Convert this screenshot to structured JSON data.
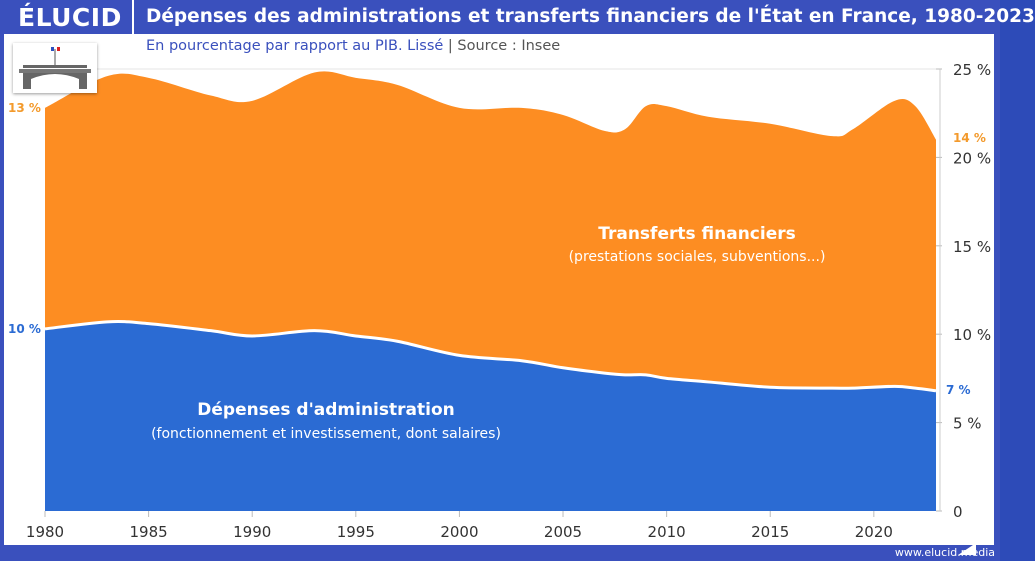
{
  "header": {
    "logo": "ÉLUCID",
    "title": "Dépenses des administrations et transferts financiers de l'État en France, 1980-2023"
  },
  "subtitle": {
    "text": "En pourcentage par rapport au PIB. Lissé",
    "sep": "|",
    "source": "Source : Insee"
  },
  "footer": {
    "url": "www.elucid.media"
  },
  "colors": {
    "frame": "#3a50bd",
    "transferts": "#fd8d22",
    "administration": "#2b6bd3",
    "start_end_transferts": "#f39a2c"
  },
  "chart_data": {
    "type": "area",
    "stacked": true,
    "x": [
      1980,
      1983,
      1985,
      1988,
      1990,
      1993,
      1995,
      1997,
      2000,
      2003,
      2005,
      2007,
      2008,
      2009,
      2010,
      2012,
      2015,
      2018,
      2019,
      2021,
      2022,
      2023
    ],
    "series": [
      {
        "name": "Dépenses d'administration",
        "sublabel": "(fonctionnement et investissement, dont salaires)",
        "color": "#2b6bd3",
        "values": [
          10.3,
          10.7,
          10.6,
          10.2,
          9.9,
          10.2,
          9.9,
          9.6,
          8.8,
          8.5,
          8.1,
          7.8,
          7.7,
          7.7,
          7.5,
          7.3,
          7.0,
          6.95,
          6.95,
          7.05,
          6.95,
          6.8
        ]
      },
      {
        "name": "Transferts financiers",
        "sublabel": "(prestations sociales, subventions...)",
        "color": "#fd8d22",
        "values": [
          12.5,
          13.9,
          13.9,
          13.3,
          13.3,
          14.6,
          14.6,
          14.5,
          14.0,
          14.3,
          14.3,
          13.7,
          13.9,
          15.2,
          15.4,
          15.0,
          14.9,
          14.25,
          14.65,
          16.15,
          15.95,
          14.2
        ]
      }
    ],
    "start_labels": {
      "transferts": "13 %",
      "administration": "10 %"
    },
    "end_labels": {
      "transferts": "14 %",
      "administration": "7 %"
    },
    "xticks": [
      1980,
      1985,
      1990,
      1995,
      2000,
      2005,
      2010,
      2015,
      2020
    ],
    "yticks": [
      0,
      5,
      10,
      15,
      20,
      25
    ],
    "ytick_labels": [
      "0",
      "5 %",
      "10 %",
      "15 %",
      "20 %",
      "25 %"
    ],
    "xlim": [
      1980,
      2023
    ],
    "ylim": [
      0,
      25
    ],
    "y_axis_side": "right",
    "grid": true
  }
}
